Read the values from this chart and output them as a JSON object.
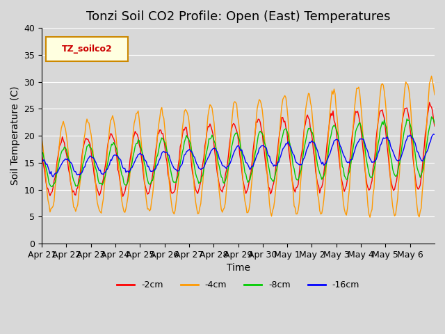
{
  "title": "Tonzi Soil CO2 Profile: Open (East) Temperatures",
  "xlabel": "Time",
  "ylabel": "Soil Temperature (C)",
  "ylim": [
    0,
    40
  ],
  "yticks": [
    0,
    5,
    10,
    15,
    20,
    25,
    30,
    35,
    40
  ],
  "xlabels": [
    "Apr 21",
    "Apr 22",
    "Apr 23",
    "Apr 24",
    "Apr 25",
    "Apr 26",
    "Apr 27",
    "Apr 28",
    "Apr 29",
    "Apr 30",
    "May 1",
    "May 2",
    "May 3",
    "May 4",
    "May 5",
    "May 6"
  ],
  "legend_label": "TZ_soilco2",
  "series_labels": [
    "-2cm",
    "-4cm",
    "-8cm",
    "-16cm"
  ],
  "series_colors": [
    "#ff0000",
    "#ff9900",
    "#00cc00",
    "#0000ff"
  ],
  "background_color": "#d8d8d8",
  "title_fontsize": 13,
  "axis_fontsize": 10,
  "tick_fontsize": 9
}
